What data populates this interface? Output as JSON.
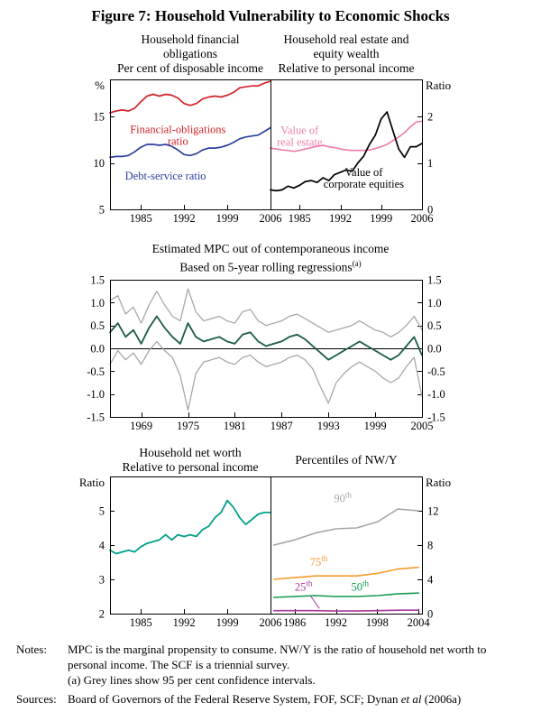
{
  "figure": {
    "title": "Figure 7: Household Vulnerability to Economic Shocks",
    "notes_label": "Notes:",
    "notes": [
      "MPC is the marginal propensity to consume. NW/Y is the ratio of household net worth to personal income. The SCF is a triennial survey.",
      "(a) Grey lines show 95 per cent confidence intervals."
    ],
    "sources_label": "Sources:",
    "sources_prefix": "Board of Governors of the Federal Reserve System, FOF, SCF; Dynan ",
    "sources_etal": "et al",
    "sources_suffix": " (2006a)"
  },
  "chart_data": [
    {
      "id": "household-financial-obligations",
      "type": "line",
      "title_lines": [
        "Household financial",
        "obligations"
      ],
      "subtitle": "Per cent of disposable income",
      "ylabel": "%",
      "xlim": [
        1980,
        2006
      ],
      "ylim": [
        5,
        19
      ],
      "xticks": [
        1985,
        1992,
        1999,
        2006
      ],
      "yticks": [
        5,
        10,
        15
      ],
      "ytick_sides": [
        "left"
      ],
      "series": [
        {
          "id": "financial-obligations-ratio",
          "name": "Financial-obligations ratio",
          "color": "#d2232a",
          "width": 1.7,
          "x": [
            1980,
            1981,
            1982,
            1983,
            1984,
            1985,
            1986,
            1987,
            1988,
            1989,
            1990,
            1991,
            1992,
            1993,
            1994,
            1995,
            1996,
            1997,
            1998,
            1999,
            2000,
            2001,
            2002,
            2003,
            2004,
            2005,
            2006
          ],
          "y": [
            15.4,
            15.6,
            15.7,
            15.6,
            15.9,
            16.6,
            17.2,
            17.4,
            17.2,
            17.4,
            17.3,
            17.0,
            16.4,
            16.2,
            16.4,
            16.9,
            17.1,
            17.2,
            17.1,
            17.3,
            17.6,
            18.1,
            18.2,
            18.3,
            18.3,
            18.6,
            18.8
          ]
        },
        {
          "id": "debt-service-ratio",
          "name": "Debt-service ratio",
          "color": "#2b3f9e",
          "width": 1.7,
          "x": [
            1980,
            1981,
            1982,
            1983,
            1984,
            1985,
            1986,
            1987,
            1988,
            1989,
            1990,
            1991,
            1992,
            1993,
            1994,
            1995,
            1996,
            1997,
            1998,
            1999,
            2000,
            2001,
            2002,
            2003,
            2004,
            2005,
            2006
          ],
          "y": [
            10.6,
            10.7,
            10.7,
            10.8,
            11.2,
            11.7,
            12.0,
            12.0,
            11.9,
            12.0,
            11.8,
            11.4,
            10.9,
            10.8,
            11.0,
            11.4,
            11.6,
            11.6,
            11.7,
            11.9,
            12.2,
            12.6,
            12.8,
            12.9,
            13.0,
            13.4,
            13.8
          ]
        }
      ],
      "annotations": [
        {
          "lines": [
            "Financial-obligations",
            "ratio"
          ],
          "color": "#d2232a",
          "x": 1991,
          "y": 13.2
        },
        {
          "lines": [
            "Debt-service ratio"
          ],
          "color": "#2b3f9e",
          "x": 1989,
          "y": 8.2
        }
      ]
    },
    {
      "id": "household-wealth",
      "type": "line",
      "title_lines": [
        "Household real estate and",
        "equity wealth"
      ],
      "subtitle": "Relative to personal income",
      "ylabel": "Ratio",
      "xlim": [
        1980,
        2006
      ],
      "ylim": [
        0,
        2.8
      ],
      "xticks": [
        1985,
        1992,
        1999,
        2006
      ],
      "yticks": [
        0,
        1,
        2
      ],
      "ytick_sides": [
        "right"
      ],
      "series": [
        {
          "id": "real-estate",
          "name": "Value of real estate",
          "color": "#ee7fae",
          "width": 1.7,
          "x": [
            1980,
            1981,
            1982,
            1983,
            1984,
            1985,
            1986,
            1987,
            1988,
            1989,
            1990,
            1991,
            1992,
            1993,
            1994,
            1995,
            1996,
            1997,
            1998,
            1999,
            2000,
            2001,
            2002,
            2003,
            2004,
            2005,
            2006
          ],
          "y": [
            1.32,
            1.3,
            1.28,
            1.27,
            1.25,
            1.27,
            1.3,
            1.33,
            1.36,
            1.38,
            1.35,
            1.33,
            1.3,
            1.28,
            1.27,
            1.27,
            1.27,
            1.28,
            1.31,
            1.35,
            1.4,
            1.48,
            1.56,
            1.65,
            1.78,
            1.88,
            1.9
          ]
        },
        {
          "id": "corporate-equities",
          "name": "Value of corporate equities",
          "color": "#000000",
          "width": 1.7,
          "x": [
            1980,
            1981,
            1982,
            1983,
            1984,
            1985,
            1986,
            1987,
            1988,
            1989,
            1990,
            1991,
            1992,
            1993,
            1994,
            1995,
            1996,
            1997,
            1998,
            1999,
            2000,
            2001,
            2002,
            2003,
            2004,
            2005,
            2006
          ],
          "y": [
            0.42,
            0.4,
            0.42,
            0.5,
            0.46,
            0.52,
            0.6,
            0.62,
            0.58,
            0.68,
            0.62,
            0.75,
            0.8,
            0.85,
            0.82,
            1.0,
            1.15,
            1.4,
            1.6,
            1.95,
            2.1,
            1.7,
            1.3,
            1.12,
            1.35,
            1.35,
            1.42
          ]
        }
      ],
      "annotations": [
        {
          "lines": [
            "Value of",
            "real estate"
          ],
          "color": "#ee7fae",
          "x": 1985,
          "y": 1.62
        },
        {
          "lines": [
            "Value of",
            "corporate equities"
          ],
          "color": "#000000",
          "x": 1996,
          "y": 0.72
        }
      ]
    },
    {
      "id": "mpc-rolling-regressions",
      "type": "line",
      "title_lines": [
        "Estimated MPC out of contemporaneous income"
      ],
      "subtitle": "Based on 5-year rolling regressions",
      "subtitle_sup": "(a)",
      "ylabel": "",
      "zero_line": true,
      "xlim": [
        1965,
        2005
      ],
      "ylim": [
        -1.5,
        1.5
      ],
      "xticks": [
        1969,
        1975,
        1981,
        1987,
        1993,
        1999,
        2005
      ],
      "yticks": [
        -1.5,
        -1,
        -0.5,
        0,
        0.5,
        1,
        1.5
      ],
      "ytick_labels": [
        "-1.5",
        "-1.0",
        "-0.5",
        "0.0",
        "0.5",
        "1.0",
        "1.5"
      ],
      "ytick_sides": [
        "left",
        "right"
      ],
      "series": [
        {
          "id": "ci-upper",
          "name": "95 per cent confidence upper",
          "color": "#a8a8a8",
          "width": 1.3,
          "x": [
            1965,
            1966,
            1967,
            1968,
            1969,
            1970,
            1971,
            1972,
            1973,
            1974,
            1975,
            1976,
            1977,
            1978,
            1979,
            1980,
            1981,
            1982,
            1983,
            1984,
            1985,
            1986,
            1987,
            1988,
            1989,
            1990,
            1991,
            1992,
            1993,
            1994,
            1995,
            1996,
            1997,
            1998,
            1999,
            2000,
            2001,
            2002,
            2003,
            2004,
            2005
          ],
          "y": [
            1.05,
            1.15,
            0.75,
            0.9,
            0.55,
            0.95,
            1.25,
            0.95,
            0.7,
            0.6,
            1.3,
            0.8,
            0.6,
            0.65,
            0.7,
            0.6,
            0.55,
            0.8,
            0.85,
            0.6,
            0.5,
            0.55,
            0.6,
            0.7,
            0.75,
            0.65,
            0.55,
            0.45,
            0.35,
            0.4,
            0.45,
            0.5,
            0.6,
            0.5,
            0.4,
            0.35,
            0.25,
            0.35,
            0.5,
            0.7,
            0.4
          ]
        },
        {
          "id": "ci-lower",
          "name": "95 per cent confidence lower",
          "color": "#a8a8a8",
          "width": 1.3,
          "x": [
            1965,
            1966,
            1967,
            1968,
            1969,
            1970,
            1971,
            1972,
            1973,
            1974,
            1975,
            1976,
            1977,
            1978,
            1979,
            1980,
            1981,
            1982,
            1983,
            1984,
            1985,
            1986,
            1987,
            1988,
            1989,
            1990,
            1991,
            1992,
            1993,
            1994,
            1995,
            1996,
            1997,
            1998,
            1999,
            2000,
            2001,
            2002,
            2003,
            2004,
            2005
          ],
          "y": [
            -0.35,
            -0.05,
            -0.25,
            -0.1,
            -0.35,
            -0.05,
            0.15,
            -0.05,
            -0.2,
            -0.6,
            -1.35,
            -0.55,
            -0.3,
            -0.25,
            -0.2,
            -0.3,
            -0.35,
            -0.2,
            -0.15,
            -0.3,
            -0.4,
            -0.35,
            -0.3,
            -0.2,
            -0.15,
            -0.25,
            -0.45,
            -0.85,
            -1.2,
            -0.75,
            -0.55,
            -0.4,
            -0.3,
            -0.4,
            -0.5,
            -0.65,
            -0.75,
            -0.65,
            -0.4,
            -0.2,
            -1.05
          ]
        },
        {
          "id": "mpc-estimate",
          "name": "Estimated MPC",
          "color": "#1a5c45",
          "width": 1.8,
          "x": [
            1965,
            1966,
            1967,
            1968,
            1969,
            1970,
            1971,
            1972,
            1973,
            1974,
            1975,
            1976,
            1977,
            1978,
            1979,
            1980,
            1981,
            1982,
            1983,
            1984,
            1985,
            1986,
            1987,
            1988,
            1989,
            1990,
            1991,
            1992,
            1993,
            1994,
            1995,
            1996,
            1997,
            1998,
            1999,
            2000,
            2001,
            2002,
            2003,
            2004,
            2005
          ],
          "y": [
            0.35,
            0.55,
            0.25,
            0.4,
            0.1,
            0.45,
            0.7,
            0.45,
            0.25,
            0.1,
            0.55,
            0.25,
            0.15,
            0.2,
            0.25,
            0.15,
            0.1,
            0.3,
            0.35,
            0.15,
            0.05,
            0.1,
            0.15,
            0.25,
            0.3,
            0.2,
            0.05,
            -0.1,
            -0.25,
            -0.15,
            -0.05,
            0.05,
            0.15,
            0.05,
            -0.05,
            -0.15,
            -0.25,
            -0.15,
            0.05,
            0.25,
            -0.15
          ]
        }
      ],
      "annotations": []
    },
    {
      "id": "household-net-worth",
      "type": "line",
      "title_lines": [
        "Household net worth"
      ],
      "subtitle": "Relative to personal income",
      "ylabel": "Ratio",
      "xlim": [
        1980,
        2006
      ],
      "ylim": [
        2,
        6
      ],
      "xticks": [
        1985,
        1992,
        1999,
        2006
      ],
      "yticks": [
        2,
        3,
        4,
        5
      ],
      "ytick_sides": [
        "left"
      ],
      "series": [
        {
          "id": "net-worth-ratio",
          "name": "Household net worth to personal income",
          "color": "#00a18c",
          "width": 1.8,
          "x": [
            1980,
            1981,
            1982,
            1983,
            1984,
            1985,
            1986,
            1987,
            1988,
            1989,
            1990,
            1991,
            1992,
            1993,
            1994,
            1995,
            1996,
            1997,
            1998,
            1999,
            2000,
            2001,
            2002,
            2003,
            2004,
            2005,
            2006
          ],
          "y": [
            3.85,
            3.75,
            3.8,
            3.85,
            3.8,
            3.95,
            4.05,
            4.1,
            4.15,
            4.3,
            4.15,
            4.3,
            4.25,
            4.3,
            4.25,
            4.45,
            4.55,
            4.8,
            4.95,
            5.3,
            5.1,
            4.8,
            4.6,
            4.75,
            4.9,
            4.95,
            4.95
          ]
        }
      ],
      "annotations": []
    },
    {
      "id": "nw-percentiles",
      "type": "line",
      "title_lines": [
        "Percentiles of NW/Y"
      ],
      "subtitle": "",
      "ylabel": "Ratio",
      "xlim": [
        1982.5,
        2004.5
      ],
      "ylim": [
        0,
        16
      ],
      "xticks": [
        1986,
        1992,
        1998,
        2004
      ],
      "yticks": [
        0,
        4,
        8,
        12
      ],
      "ytick_sides": [
        "right"
      ],
      "series": [
        {
          "id": "p90",
          "name": "90th percentile",
          "color": "#a6a6a6",
          "width": 1.6,
          "x": [
            1983,
            1986,
            1989,
            1992,
            1995,
            1998,
            2001,
            2004
          ],
          "y": [
            8.0,
            8.6,
            9.4,
            9.9,
            10.0,
            10.7,
            12.2,
            12.0
          ]
        },
        {
          "id": "p75",
          "name": "75th percentile",
          "color": "#f79b2e",
          "width": 1.6,
          "x": [
            1983,
            1986,
            1989,
            1992,
            1995,
            1998,
            2001,
            2004
          ],
          "y": [
            4.0,
            4.2,
            4.4,
            4.4,
            4.4,
            4.7,
            5.2,
            5.4
          ]
        },
        {
          "id": "p50",
          "name": "50th percentile",
          "color": "#149a4e",
          "width": 1.6,
          "x": [
            1983,
            1986,
            1989,
            1992,
            1995,
            1998,
            2001,
            2004
          ],
          "y": [
            1.9,
            2.0,
            2.1,
            2.0,
            2.0,
            2.1,
            2.3,
            2.4
          ]
        },
        {
          "id": "p25",
          "name": "25th percentile",
          "color": "#a83a9b",
          "width": 1.6,
          "x": [
            1983,
            1986,
            1989,
            1992,
            1995,
            1998,
            2001,
            2004
          ],
          "y": [
            0.35,
            0.35,
            0.35,
            0.3,
            0.3,
            0.35,
            0.4,
            0.4
          ]
        }
      ],
      "annotations": [
        {
          "text": "90",
          "sup": "th",
          "color": "#a6a6a6",
          "x": 1993,
          "y": 13.0
        },
        {
          "text": "75",
          "sup": "th",
          "color": "#f79b2e",
          "x": 1989.5,
          "y": 5.6
        },
        {
          "text": "50",
          "sup": "th",
          "color": "#149a4e",
          "x": 1995.5,
          "y": 2.7
        },
        {
          "text": "25",
          "sup": "th",
          "color": "#a83a9b",
          "x": 1987.3,
          "y": 2.7,
          "leader": [
            1988.3,
            2.1,
            1989.6,
            0.6
          ]
        }
      ]
    }
  ]
}
